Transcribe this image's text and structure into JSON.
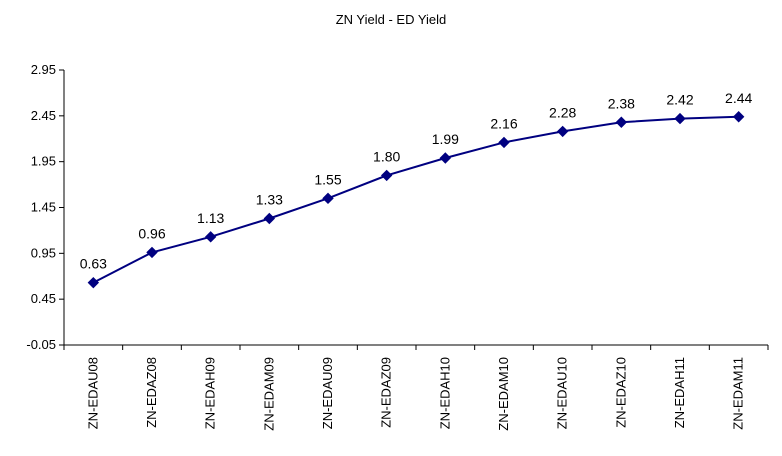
{
  "chart_data": {
    "type": "line",
    "title": "ZN Yield - ED Yield",
    "xlabel": "",
    "ylabel": "",
    "categories": [
      "ZN-EDAU08",
      "ZN-EDAZ08",
      "ZN-EDAH09",
      "ZN-EDAM09",
      "ZN-EDAU09",
      "ZN-EDAZ09",
      "ZN-EDAH10",
      "ZN-EDAM10",
      "ZN-EDAU10",
      "ZN-EDAZ10",
      "ZN-EDAH11",
      "ZN-EDAM11"
    ],
    "values": [
      0.63,
      0.96,
      1.13,
      1.33,
      1.55,
      1.8,
      1.99,
      2.16,
      2.28,
      2.38,
      2.42,
      2.44
    ],
    "data_labels": [
      "0.63",
      "0.96",
      "1.13",
      "1.33",
      "1.55",
      "1.80",
      "1.99",
      "2.16",
      "2.28",
      "2.38",
      "2.42",
      "2.44"
    ],
    "yticks": [
      -0.05,
      0.45,
      0.95,
      1.45,
      1.95,
      2.45,
      2.95
    ],
    "ytick_labels": [
      "-0.05",
      "0.45",
      "0.95",
      "1.45",
      "1.95",
      "2.45",
      "2.95"
    ],
    "ylim": [
      -0.05,
      2.95
    ],
    "grid": false,
    "legend": "none",
    "colors": {
      "line": "#000080",
      "marker": "#000080",
      "axis": "#000000"
    }
  }
}
